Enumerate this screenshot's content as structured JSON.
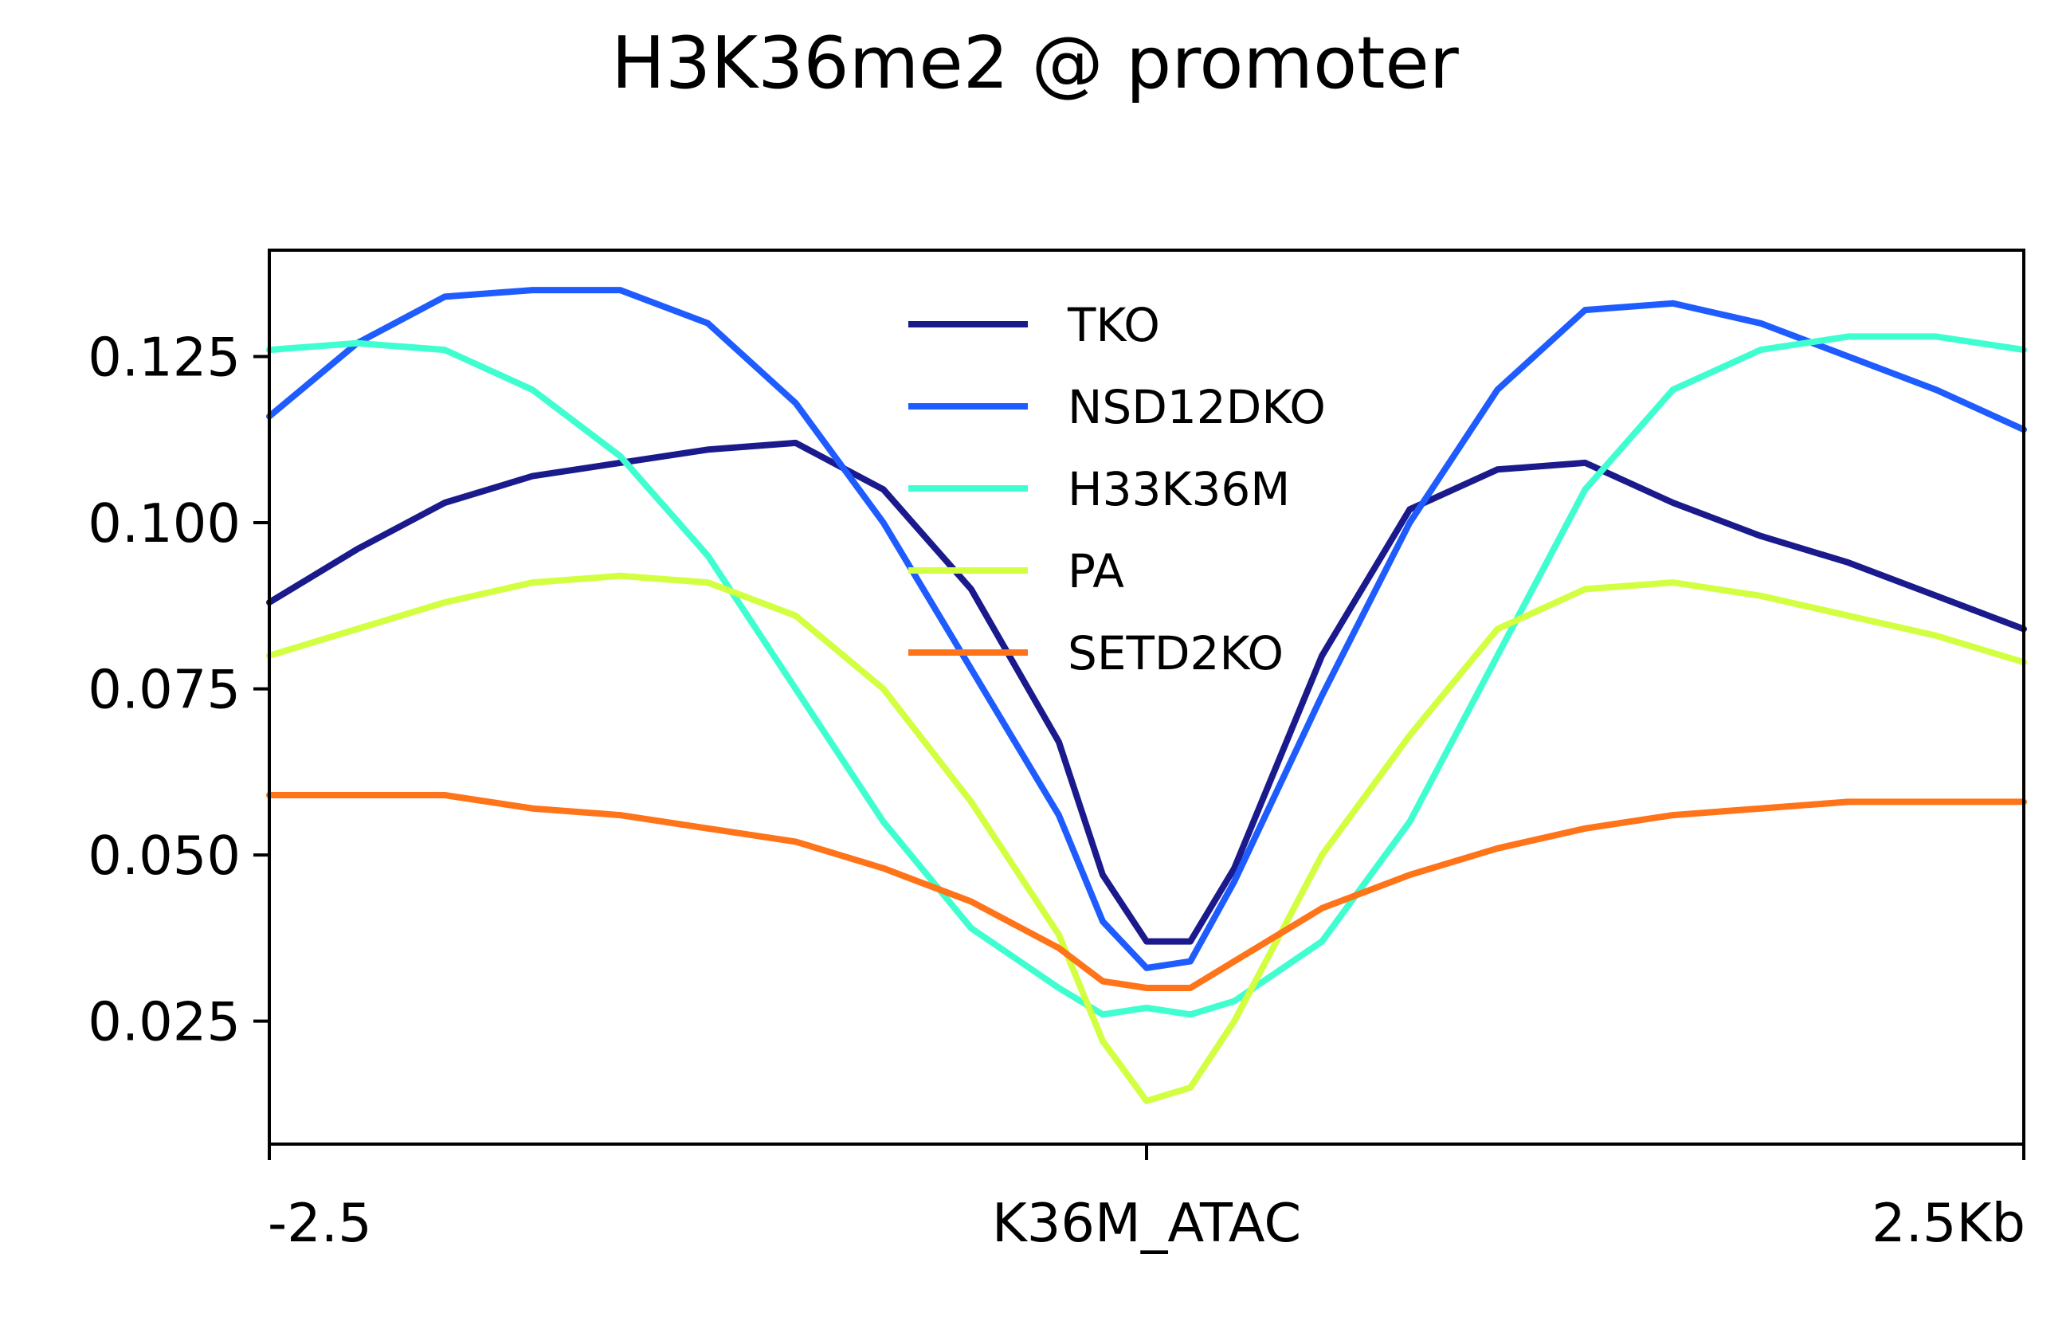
{
  "chart_data": {
    "type": "line",
    "title": "H3K36me2 @ promoter",
    "xlabel": "",
    "ylabel": "",
    "xlim": [
      -2.5,
      2.5
    ],
    "ylim": [
      0.0065,
      0.141
    ],
    "x_ticks": [
      {
        "value": -2.5,
        "label": "-2.5"
      },
      {
        "value": 0,
        "label": "K36M_ATAC"
      },
      {
        "value": 2.5,
        "label": "2.5Kb"
      }
    ],
    "y_ticks": [
      {
        "value": 0.025,
        "label": "0.025"
      },
      {
        "value": 0.05,
        "label": "0.050"
      },
      {
        "value": 0.075,
        "label": "0.075"
      },
      {
        "value": 0.1,
        "label": "0.100"
      },
      {
        "value": 0.125,
        "label": "0.125"
      }
    ],
    "grid": false,
    "legend_position": "top-center",
    "x": [
      -2.5,
      -2.25,
      -2.0,
      -1.75,
      -1.5,
      -1.25,
      -1.0,
      -0.75,
      -0.5,
      -0.25,
      -0.125,
      0.0,
      0.125,
      0.25,
      0.5,
      0.75,
      1.0,
      1.25,
      1.5,
      1.75,
      2.0,
      2.25,
      2.5
    ],
    "series": [
      {
        "name": "TKO",
        "color": "#1a1a8c",
        "values": [
          0.088,
          0.096,
          0.103,
          0.107,
          0.109,
          0.111,
          0.112,
          0.105,
          0.09,
          0.067,
          0.047,
          0.037,
          0.037,
          0.048,
          0.08,
          0.102,
          0.108,
          0.109,
          0.103,
          0.098,
          0.094,
          0.089,
          0.084
        ]
      },
      {
        "name": "NSD12DKO",
        "color": "#1f5cff",
        "values": [
          0.116,
          0.127,
          0.134,
          0.135,
          0.135,
          0.13,
          0.118,
          0.1,
          0.078,
          0.056,
          0.04,
          0.033,
          0.034,
          0.046,
          0.074,
          0.1,
          0.12,
          0.132,
          0.133,
          0.13,
          0.125,
          0.12,
          0.114
        ]
      },
      {
        "name": "H33K36M",
        "color": "#3ffecf",
        "values": [
          0.126,
          0.127,
          0.126,
          0.12,
          0.11,
          0.095,
          0.075,
          0.055,
          0.039,
          0.03,
          0.026,
          0.027,
          0.026,
          0.028,
          0.037,
          0.055,
          0.08,
          0.105,
          0.12,
          0.126,
          0.128,
          0.128,
          0.126
        ]
      },
      {
        "name": "PA",
        "color": "#d2ff40",
        "values": [
          0.08,
          0.084,
          0.088,
          0.091,
          0.092,
          0.091,
          0.086,
          0.075,
          0.058,
          0.038,
          0.022,
          0.013,
          0.015,
          0.025,
          0.05,
          0.068,
          0.084,
          0.09,
          0.091,
          0.089,
          0.086,
          0.083,
          0.079
        ]
      },
      {
        "name": "SETD2KO",
        "color": "#ff7319",
        "values": [
          0.059,
          0.059,
          0.059,
          0.057,
          0.056,
          0.054,
          0.052,
          0.048,
          0.043,
          0.036,
          0.031,
          0.03,
          0.03,
          0.034,
          0.042,
          0.047,
          0.051,
          0.054,
          0.056,
          0.057,
          0.058,
          0.058,
          0.058
        ]
      }
    ]
  }
}
